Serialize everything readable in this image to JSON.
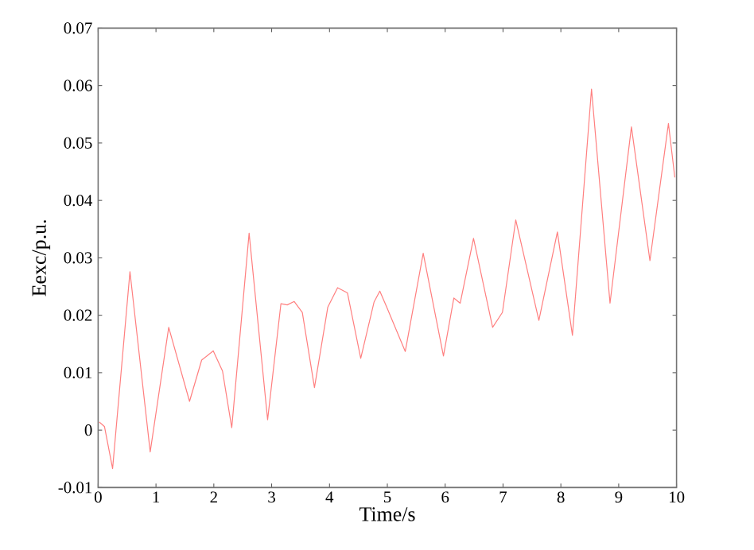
{
  "chart_data": {
    "type": "line",
    "xlabel": "Time/s",
    "ylabel": "Eexc/p.u.",
    "xlim": [
      0,
      10
    ],
    "ylim": [
      -0.01,
      0.07
    ],
    "xticks": [
      0,
      1,
      2,
      3,
      4,
      5,
      6,
      7,
      8,
      9,
      10
    ],
    "yticks": [
      -0.01,
      0,
      0.01,
      0.02,
      0.03,
      0.04,
      0.05,
      0.06,
      0.07
    ],
    "line_style": "solid",
    "series": [
      {
        "color": "#ff7f7f",
        "x": [
          0.02,
          0.11,
          0.25,
          0.55,
          0.9,
          1.22,
          1.58,
          1.79,
          1.99,
          2.15,
          2.31,
          2.61,
          2.93,
          3.16,
          3.27,
          3.39,
          3.53,
          3.74,
          3.97,
          4.14,
          4.31,
          4.54,
          4.77,
          4.87,
          4.99,
          5.31,
          5.62,
          5.97,
          6.15,
          6.26,
          6.49,
          6.82,
          6.99,
          7.22,
          7.62,
          7.94,
          8.2,
          8.53,
          8.85,
          9.22,
          9.54,
          9.86,
          9.97
        ],
        "values": [
          0.0014,
          0.0006,
          -0.0067,
          0.0276,
          -0.0038,
          0.0179,
          0.005,
          0.0122,
          0.0138,
          0.0103,
          0.0004,
          0.0343,
          0.0018,
          0.022,
          0.0218,
          0.0224,
          0.0205,
          0.0074,
          0.0214,
          0.0248,
          0.0239,
          0.0125,
          0.0223,
          0.0242,
          0.0214,
          0.0137,
          0.0308,
          0.0129,
          0.023,
          0.0221,
          0.0334,
          0.0179,
          0.0205,
          0.0366,
          0.0191,
          0.0345,
          0.0165,
          0.0594,
          0.0221,
          0.0528,
          0.0295,
          0.0534,
          0.044
        ]
      }
    ]
  }
}
